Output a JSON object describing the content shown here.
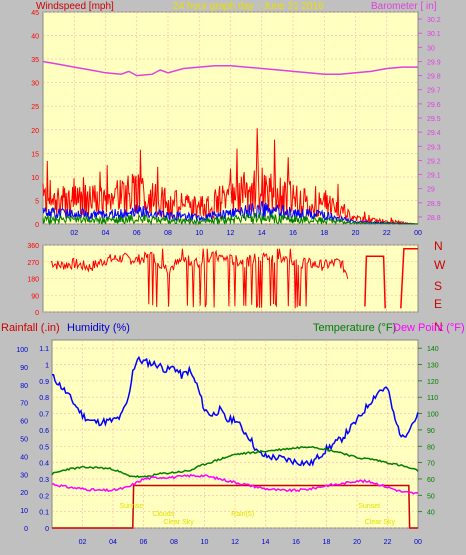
{
  "colors": {
    "plot_bg": "#ffffc0",
    "frame_bg": "#c0c0c0",
    "grid": "#ffb0b0",
    "wind_gust": "#ff0000",
    "wind_avg": "#0000ff",
    "wind_green": "#008000",
    "barometer": "#e040e0",
    "direction": "#ff0000",
    "rainfall": "#cc0000",
    "humidity": "#0000ff",
    "temperature": "#008000",
    "dewpoint": "#ff00ff",
    "title": "#e8e000",
    "annotation": "#e0e000"
  },
  "header": {
    "windspeed_label": "Windspeed [mph]",
    "title": "24 hour graph day - June 21 2016",
    "barometer_label": "Barometer [ in]"
  },
  "bottom_header": {
    "rainfall_label": "Rainfall (.in)",
    "humidity_label": "Humidity (%)",
    "temperature_label": "Temperature (°F)",
    "dewpoint_label": "Dew Point (°F)"
  },
  "compass_labels": [
    "N",
    "W",
    "S",
    "E",
    "N"
  ],
  "annotations": [
    {
      "text": "Sunrise",
      "hour": 5.2,
      "row": 0
    },
    {
      "text": "Clouds",
      "hour": 7.3,
      "row": 1
    },
    {
      "text": "Clear Sky",
      "hour": 8.3,
      "row": 2
    },
    {
      "text": "Rain(5)",
      "hour": 12.5,
      "row": 1
    },
    {
      "text": "Sunset",
      "hour": 20.8,
      "row": 0
    },
    {
      "text": "Clear Sky",
      "hour": 21.5,
      "row": 2
    }
  ],
  "chart_data": [
    {
      "type": "line",
      "name": "wind-barometer",
      "x_ticks": [
        "02",
        "04",
        "06",
        "08",
        "10",
        "12",
        "14",
        "16",
        "18",
        "20",
        "22",
        "00"
      ],
      "y_left_ticks": [
        "0",
        "5",
        "10",
        "15",
        "20",
        "25",
        "30",
        "35",
        "40",
        "45"
      ],
      "y_left_range": [
        0,
        45
      ],
      "y_right_ticks": [
        "28.8",
        "28.9",
        "29",
        "29.1",
        "29.2",
        "29.3",
        "29.4",
        "29.5",
        "29.6",
        "29.7",
        "29.8",
        "29.9",
        "30",
        "30.1",
        "30.2"
      ],
      "y_right_range": [
        28.75,
        30.25
      ],
      "x_range": [
        0,
        24
      ],
      "barometer": {
        "x": [
          0,
          1,
          2,
          3,
          4,
          5,
          5.5,
          6,
          7,
          7.5,
          8,
          9,
          10,
          11,
          12,
          13,
          14,
          15,
          16,
          17,
          18,
          19,
          20,
          21,
          22,
          23,
          24
        ],
        "y": [
          29.9,
          29.88,
          29.86,
          29.84,
          29.82,
          29.81,
          29.83,
          29.8,
          29.81,
          29.84,
          29.82,
          29.85,
          29.86,
          29.87,
          29.87,
          29.86,
          29.85,
          29.84,
          29.83,
          29.82,
          29.81,
          29.81,
          29.82,
          29.83,
          29.85,
          29.86,
          29.86
        ]
      },
      "gust_profile": {
        "x": [
          0,
          2,
          4,
          6,
          8,
          10,
          12,
          14,
          16,
          18,
          20,
          22,
          24
        ],
        "y": [
          5,
          5,
          4,
          6,
          4,
          3,
          5,
          7,
          5,
          4,
          1,
          0.5,
          0
        ]
      }
    },
    {
      "type": "line",
      "name": "wind-direction",
      "y_ticks": [
        "0",
        "90",
        "180",
        "270",
        "360"
      ],
      "y_range": [
        0,
        360
      ],
      "x_range": [
        0,
        24
      ],
      "segments": [
        {
          "x": [
            0.5,
            1,
            2,
            3,
            4,
            5,
            6,
            7,
            8,
            9,
            10,
            11,
            12,
            13,
            14,
            15,
            16,
            17,
            18,
            19,
            19.5
          ],
          "y": [
            270,
            250,
            260,
            240,
            280,
            290,
            280,
            300,
            230,
            280,
            260,
            300,
            280,
            270,
            300,
            290,
            270,
            260,
            250,
            270,
            200
          ]
        },
        {
          "x": [
            20.6,
            20.7,
            21.8,
            21.9
          ],
          "y": [
            30,
            300,
            300,
            20
          ]
        },
        {
          "x": [
            22.9,
            23.1,
            23.2,
            24
          ],
          "y": [
            20,
            340,
            340,
            340
          ]
        }
      ]
    },
    {
      "type": "line",
      "name": "weather",
      "x_ticks": [
        "02",
        "04",
        "06",
        "08",
        "10",
        "12",
        "14",
        "16",
        "18",
        "20",
        "22",
        "00"
      ],
      "x_range": [
        0,
        24
      ],
      "rain_ticks": [
        "0",
        "0.1",
        "0.2",
        "0.3",
        "0.4",
        "0.5",
        "0.6",
        "0.7",
        "0.8",
        "0.9",
        "1",
        "1.1"
      ],
      "rain_range": [
        0,
        1.15
      ],
      "humidity_ticks": [
        "0",
        "10",
        "20",
        "30",
        "40",
        "50",
        "60",
        "70",
        "80",
        "90",
        "100"
      ],
      "humidity_range": [
        0,
        105
      ],
      "temperature_ticks": [
        "40",
        "50",
        "60",
        "70",
        "80",
        "90",
        "100",
        "110",
        "120",
        "130",
        "140"
      ],
      "temperature_range": [
        30,
        145
      ],
      "rainfall": {
        "x": [
          0,
          5.3,
          5.35,
          23.4,
          23.45,
          24
        ],
        "y": [
          0,
          0,
          0.26,
          0.26,
          0,
          0
        ]
      },
      "humidity": {
        "x": [
          0,
          1,
          2,
          2.5,
          3,
          4,
          4.5,
          5,
          5.3,
          5.6,
          6,
          7,
          7.5,
          8,
          8.5,
          9,
          9.5,
          10,
          10.5,
          11,
          11.5,
          12,
          12.5,
          13,
          13.5,
          14,
          15,
          16,
          17,
          17.5,
          18,
          19,
          20,
          21,
          21.5,
          22,
          22.5,
          23,
          23.5,
          24
        ],
        "y": [
          85,
          75,
          63,
          60,
          59,
          60,
          62,
          72,
          88,
          94,
          93,
          91,
          88,
          90,
          85,
          88,
          80,
          66,
          63,
          66,
          60,
          61,
          55,
          50,
          42,
          40,
          39,
          37,
          36,
          40,
          44,
          50,
          60,
          72,
          77,
          78,
          60,
          50,
          57,
          63
        ]
      },
      "temperature": {
        "x": [
          0,
          1,
          2,
          3,
          4,
          5,
          6,
          7,
          8,
          9,
          10,
          11,
          12,
          13,
          14,
          15,
          16,
          17,
          18,
          19,
          20,
          21,
          22,
          23,
          24
        ],
        "y": [
          63,
          66,
          67,
          67,
          66,
          62,
          61,
          63,
          64,
          65,
          69,
          72,
          75,
          76,
          77,
          78,
          79,
          80,
          78,
          76,
          73,
          72,
          70,
          68,
          65
        ]
      },
      "dewpoint": {
        "x": [
          0,
          1,
          2,
          3,
          4,
          5,
          6,
          7,
          8,
          9,
          10,
          11,
          12,
          13,
          14,
          15,
          16,
          17,
          18,
          19,
          20,
          21,
          22,
          23,
          24
        ],
        "y": [
          57,
          55,
          54,
          53,
          53,
          55,
          60,
          61,
          61,
          62,
          62,
          60,
          58,
          56,
          54,
          53,
          53,
          54,
          56,
          57,
          59,
          58,
          55,
          52,
          51
        ]
      }
    }
  ]
}
